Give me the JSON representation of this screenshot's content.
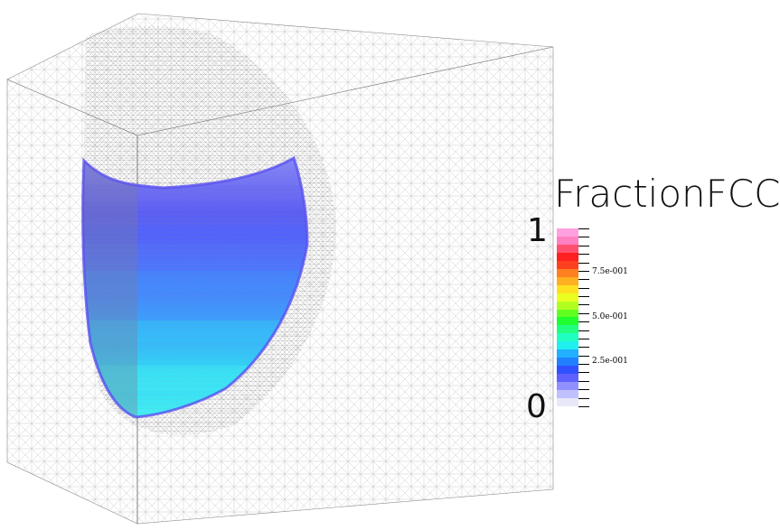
{
  "legend": {
    "title": "FractionFCC_",
    "max_label": "1",
    "min_label": "0",
    "tick_labels": [
      {
        "text": "7.5e-001",
        "value": 0.75
      },
      {
        "text": "5.0e-001",
        "value": 0.5
      },
      {
        "text": "2.5e-001",
        "value": 0.25
      }
    ],
    "band_colors": [
      "#ffa0e0",
      "#ff80c0",
      "#ff5070",
      "#ff2020",
      "#ff4020",
      "#ff8020",
      "#ffb020",
      "#ffe020",
      "#e8ff20",
      "#b0ff20",
      "#60ff20",
      "#20ff30",
      "#20ff80",
      "#20ffc0",
      "#20f0f0",
      "#20b0ff",
      "#2080ff",
      "#3050ff",
      "#6060ff",
      "#9090ff",
      "#c0c0ff",
      "#e8e8f8"
    ]
  },
  "colors": {
    "mesh": "#9a9a9a",
    "blob_top": "#7070f8",
    "blob_mid": "#4a80ff",
    "blob_bottom": "#40f0f8"
  }
}
